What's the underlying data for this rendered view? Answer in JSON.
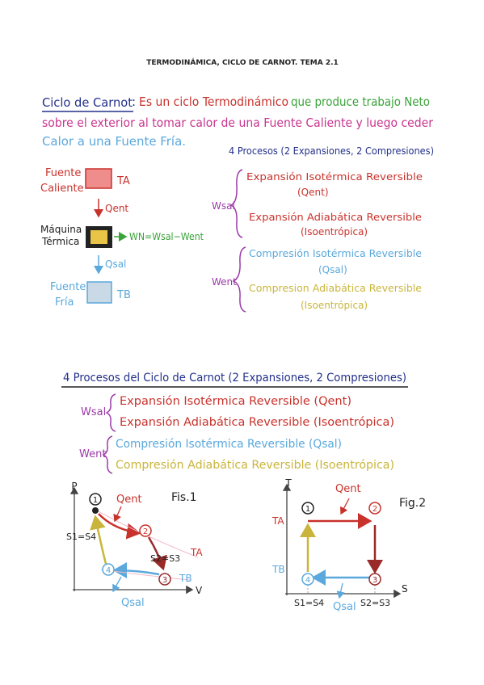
{
  "header": {
    "title": "TERMODINÁMICA, CICLO DE CARNOT. TEMA 2.1"
  },
  "definition": {
    "term": "Ciclo de Carnot",
    "separator": ":",
    "lines": [
      [
        "Es un ciclo Termodinámico",
        "que produce trabajo Neto"
      ],
      [
        "sobre el exterior al tomar calor de una Fuente Caliente y luego ceder"
      ],
      [
        "Calor a una Fuente Fría."
      ]
    ]
  },
  "engine": {
    "hot_source": [
      "Fuente",
      "Caliente"
    ],
    "hot_temp": "TA",
    "heat_in": "Qent",
    "machine": [
      "Máquina",
      "Térmica"
    ],
    "work": "WN=Wsal−Went",
    "heat_out": "Qsal",
    "cold_source": [
      "Fuente",
      "Fría"
    ],
    "cold_temp": "TB"
  },
  "processes": {
    "title": "4 Procesos (2 Expansiones, 2 Compresiones)",
    "groups": [
      {
        "label": "Wsal",
        "items": [
          {
            "text": "Expansión Isotérmica Reversible",
            "note": "(Qent)"
          },
          {
            "text": "Expansión Adiabática Reversible",
            "note": "(Isoentrópica)"
          }
        ]
      },
      {
        "label": "Went",
        "items": [
          {
            "text": "Compresión Isotérmica Reversible",
            "note": "(Qsal)"
          },
          {
            "text": "Compresion Adiabática Reversible",
            "note": "(Isoentrópica)"
          }
        ]
      }
    ]
  },
  "summary": {
    "title": "4 Procesos del Ciclo de Carnot (2 Expansiones, 2 Compresiones)",
    "groups": [
      {
        "label": "Wsal",
        "items": [
          "Expansión Isotérmica Reversible (Qent)",
          "Expansión Adiabática Reversible (Isoentrópica)"
        ]
      },
      {
        "label": "Went",
        "items": [
          "Compresión Isotérmica Reversible (Qsal)",
          "Compresión Adiabática Reversible (Isoentrópica)"
        ]
      }
    ]
  },
  "fig1": {
    "title": "Fis.1",
    "x_axis": "V",
    "y_axis": "P",
    "points": [
      "1",
      "2",
      "3",
      "4"
    ],
    "heat_in": "Qent",
    "heat_out": "Qsal",
    "s_left": "S1=S4",
    "s_right": "S2=S3",
    "t_hot": "TA",
    "t_cold": "TB"
  },
  "fig2": {
    "title": "Fig.2",
    "x_axis": "S",
    "y_axis": "T",
    "points": [
      "1",
      "2",
      "3",
      "4"
    ],
    "heat_in": "Qent",
    "heat_out": "Qsal",
    "s_left": "S1=S4",
    "s_right": "S2=S3",
    "t_hot": "TA",
    "t_cold": "TB"
  }
}
